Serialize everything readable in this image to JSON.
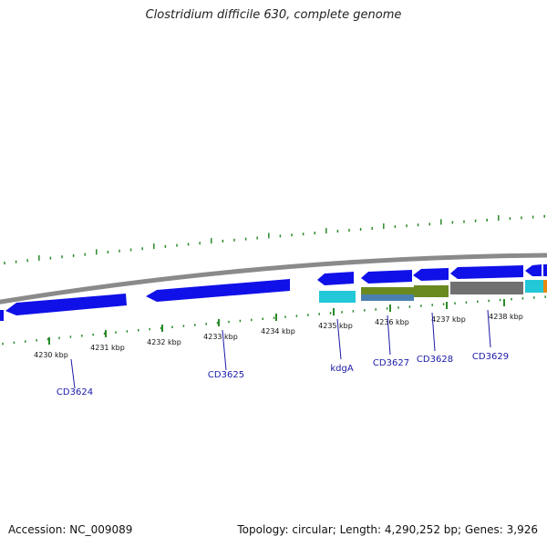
{
  "title": "Clostridium difficile 630, complete genome",
  "footer": {
    "accession": "Accession: NC_009089",
    "summary": "Topology: circular; Length: 4,290,252 bp; Genes: 3,926"
  },
  "colors": {
    "gene_blue": "#1010e8",
    "backbone": "#8a8a8a",
    "tick_green": "#2a8a2a",
    "cyan": "#22c8d8",
    "olive": "#6a8a20",
    "steel": "#4a80b0",
    "gray": "#707070",
    "orange": "#e88a10",
    "label_blue": "#1a1aa8"
  },
  "ticks": [
    {
      "label": "4230 kbp"
    },
    {
      "label": "4231 kbp"
    },
    {
      "label": "4232 kbp"
    },
    {
      "label": "4233 kbp"
    },
    {
      "label": "4234 kbp"
    },
    {
      "label": "4235 kbp"
    },
    {
      "label": "4236 kbp"
    },
    {
      "label": "4237 kbp"
    },
    {
      "label": "4238 kbp"
    }
  ],
  "genes": [
    {
      "label": "CD3624"
    },
    {
      "label": "CD3625"
    },
    {
      "label": "kdgA"
    },
    {
      "label": "CD3627"
    },
    {
      "label": "CD3628"
    },
    {
      "label": "CD3629"
    }
  ]
}
